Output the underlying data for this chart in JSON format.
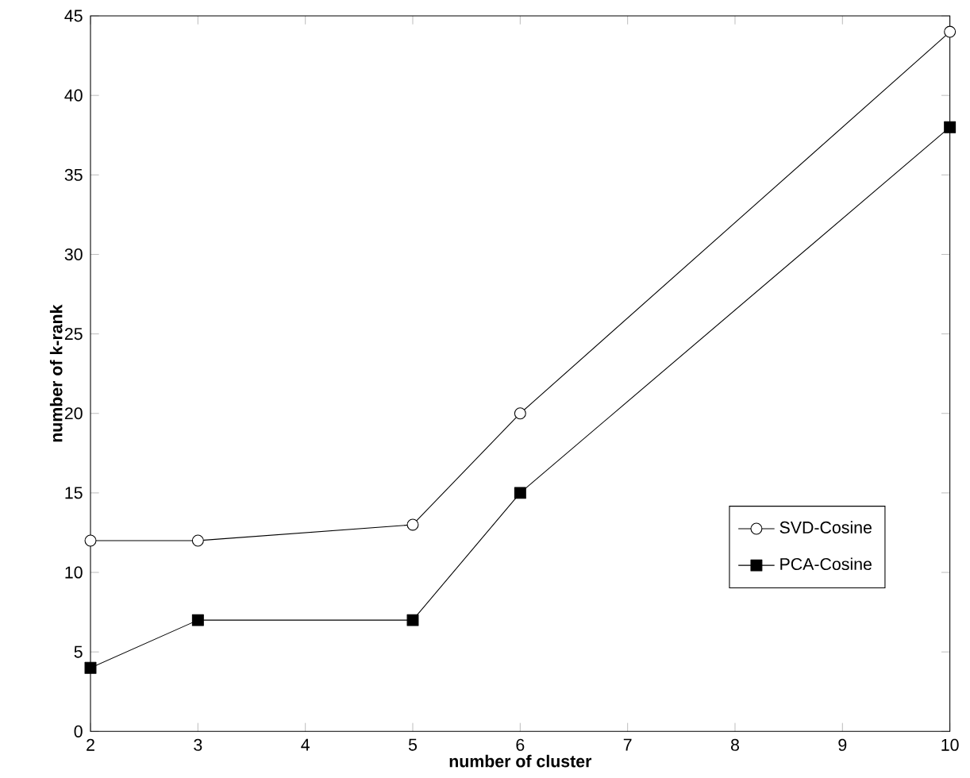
{
  "chart_data": {
    "type": "line",
    "xlabel": "number of cluster",
    "ylabel": "number of k-rank",
    "x": [
      2,
      3,
      5,
      6,
      10
    ],
    "series": [
      {
        "name": "SVD-Cosine",
        "color": "#000000",
        "marker": "circle",
        "values": [
          12,
          12,
          13,
          20,
          44
        ]
      },
      {
        "name": "PCA-Cosine",
        "color": "#000000",
        "marker": "square",
        "values": [
          4,
          7,
          7,
          15,
          38
        ]
      }
    ],
    "xlim": [
      2,
      10
    ],
    "xticks": [
      2,
      3,
      4,
      5,
      6,
      7,
      8,
      9,
      10
    ],
    "ylim": [
      0,
      45
    ],
    "yticks": [
      0,
      5,
      10,
      15,
      20,
      25,
      30,
      35,
      40,
      45
    ],
    "legend": "bottom right",
    "grid": false,
    "line_style": "solid"
  }
}
